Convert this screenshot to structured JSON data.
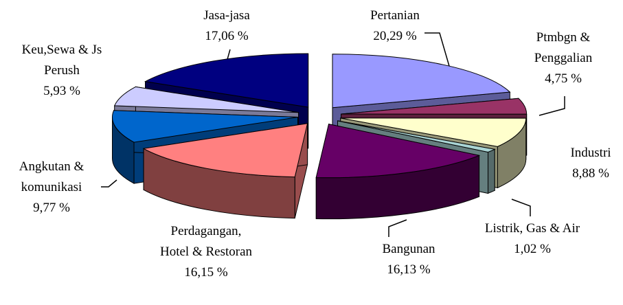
{
  "chart_data": {
    "type": "pie",
    "categories": [
      "Pertanian",
      "Ptmbgn & Penggalian",
      "Industri",
      "Listrik, Gas & Air",
      "Bangunan",
      "Perdagangan, Hotel & Restoran",
      "Angkutan & komunikasi",
      "Keu,Sewa & Js Perush",
      "Jasa-jasa"
    ],
    "values": [
      20.29,
      4.75,
      8.88,
      1.02,
      16.13,
      16.15,
      9.77,
      5.93,
      17.06
    ],
    "value_labels": [
      "20,29 %",
      "4,75 %",
      "8,88 %",
      "1,02 %",
      "16,13 %",
      "16,15 %",
      "9,77 %",
      "5,93 %",
      "17,06 %"
    ],
    "colors": [
      "#9999ff",
      "#993366",
      "#ffffcc",
      "#a9d4d4",
      "#660066",
      "#ff8080",
      "#0066cc",
      "#ccccff",
      "#000080"
    ]
  }
}
